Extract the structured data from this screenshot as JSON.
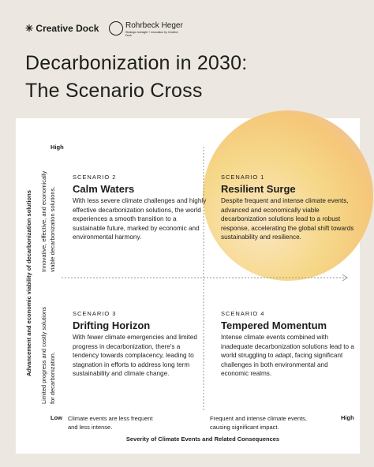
{
  "header": {
    "logo_left": "Creative Dock",
    "logo_right": "Rohrbeck Heger",
    "logo_right_sub": "Strategic foresight + innovation by Creative Dock"
  },
  "title": {
    "line1": "Decarbonization in 2030:",
    "line2": "The Scenario Cross"
  },
  "axes": {
    "y_title": "Advancement and economic viability of decarbonization solutions",
    "y_high": "High",
    "y_high_desc": "Innovative, effective, and economically viable decarbonization solutions.",
    "y_low_desc": "Limited progress and costly solutions for decarbonization.",
    "x_low": "Low",
    "x_low_desc": "Climate events are less frequent and less intense.",
    "x_high": "High",
    "x_high_desc": "Frequent and intense climate events, causing significant impact.",
    "x_title": "Severity of Climate Events and Related Consequences"
  },
  "scenarios": [
    {
      "label": "SCENARIO 1",
      "title": "Resilient Surge",
      "description": "Despite frequent and intense climate events, advanced and economically viable decarbonization solutions lead to a robust response, accelerating the global shift towards sustainability and resilience."
    },
    {
      "label": "SCENARIO 2",
      "title": "Calm Waters",
      "description": "With less severe climate challenges and highly effective decarbonization solutions, the world experiences a smooth transition to a sustainable future, marked by economic and environmental harmony."
    },
    {
      "label": "SCENARIO 3",
      "title": "Drifting Horizon",
      "description": "With fewer climate emergencies and limited progress in decarbonization, there's a tendency towards complacency, leading to stagnation in efforts to address long term sustainability and climate change."
    },
    {
      "label": "SCENARIO 4",
      "title": "Tempered Momentum",
      "description": "Intense climate events combined with inadequate decarbonization solutions lead to a world struggling to adapt, facing significant challenges in both environmental and economic realms."
    }
  ]
}
